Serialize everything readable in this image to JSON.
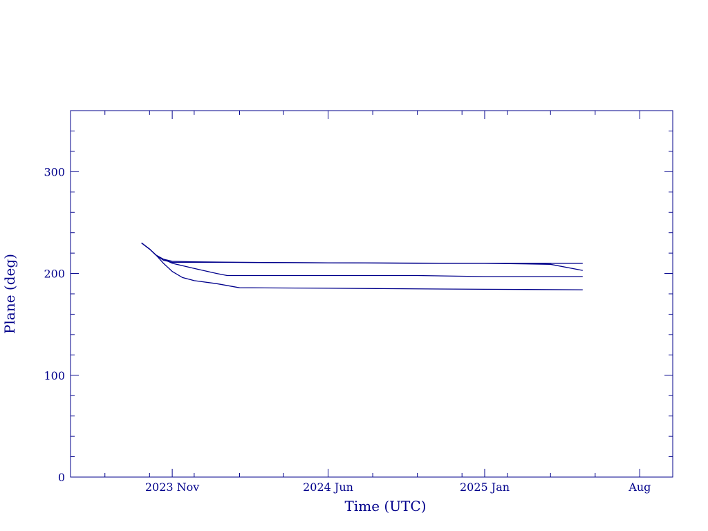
{
  "chart_data": {
    "type": "line",
    "title": "",
    "xlabel": "Time (UTC)",
    "ylabel": "Plane (deg)",
    "color": "#00008b",
    "ylim": [
      0,
      360
    ],
    "xlim": [
      "2023-06-15",
      "2025-09-15"
    ],
    "grid": false,
    "legend": "none",
    "yticks": [
      {
        "value": 0,
        "label": "0"
      },
      {
        "value": 100,
        "label": "100"
      },
      {
        "value": 200,
        "label": "200"
      },
      {
        "value": 300,
        "label": "300"
      }
    ],
    "xticks": [
      {
        "date": "2023-11-01",
        "label": "2023 Nov"
      },
      {
        "date": "2024-06-01",
        "label": "2024 Jun"
      },
      {
        "date": "2025-01-01",
        "label": "2025 Jan"
      },
      {
        "date": "2025-08-01",
        "label": "Aug"
      }
    ],
    "series": [
      {
        "x": [
          "2023-09-20",
          "2023-10-01",
          "2023-10-10",
          "2023-10-20",
          "2023-11-01",
          "2023-12-01",
          "2024-02-01",
          "2024-06-01",
          "2024-10-01",
          "2025-01-01",
          "2025-04-01",
          "2025-05-15"
        ],
        "values": [
          230,
          224,
          218,
          214,
          212,
          211.5,
          211,
          210.5,
          210,
          210,
          210,
          210
        ]
      },
      {
        "x": [
          "2023-09-20",
          "2023-10-01",
          "2023-10-10",
          "2023-10-20",
          "2023-11-01",
          "2023-12-01",
          "2024-01-01",
          "2024-01-15",
          "2024-06-01",
          "2024-10-01",
          "2025-01-01",
          "2025-05-15"
        ],
        "values": [
          230,
          224,
          218,
          214,
          210,
          205,
          200,
          198,
          198,
          198,
          197,
          197
        ]
      },
      {
        "x": [
          "2023-09-20",
          "2023-10-01",
          "2023-10-10",
          "2023-10-20",
          "2023-11-01",
          "2023-11-15",
          "2023-12-01",
          "2024-01-01",
          "2024-02-01",
          "2024-06-01",
          "2025-01-01",
          "2025-05-15"
        ],
        "values": [
          230,
          224,
          218,
          210,
          202,
          196,
          193,
          190,
          186,
          185.5,
          184.5,
          184
        ]
      },
      {
        "x": [
          "2023-09-20",
          "2023-10-01",
          "2023-10-10",
          "2023-10-20",
          "2023-11-01",
          "2024-01-01",
          "2024-06-01",
          "2025-01-01",
          "2025-04-01",
          "2025-05-15"
        ],
        "values": [
          230,
          224,
          218,
          213,
          211,
          211,
          210.5,
          210,
          209,
          203
        ]
      }
    ]
  }
}
